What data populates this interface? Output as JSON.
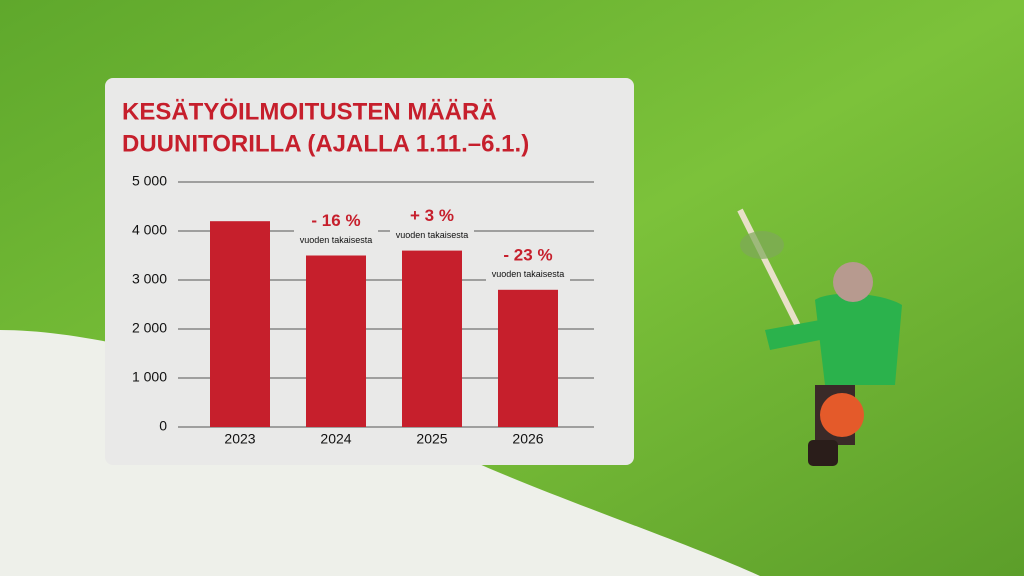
{
  "chart_data": {
    "type": "bar",
    "title": [
      "KESÄTYÖILMOITUSTEN MÄÄRÄ",
      "DUUNITORILLA (AJALLA 1.11.–6.1.)"
    ],
    "categories": [
      "2023",
      "2024",
      "2025",
      "2026"
    ],
    "values": [
      4200,
      3500,
      3600,
      2800
    ],
    "color": "#c61f2c",
    "ylim": [
      0,
      5000
    ],
    "yticks": [
      0,
      {
        "value": 1000,
        "label": "1 000"
      },
      {
        "value": 2000,
        "label": "2 000"
      },
      {
        "value": 3000,
        "label": "3 000"
      },
      {
        "value": 4000,
        "label": "4 000"
      },
      {
        "value": 5000,
        "label": "5 000"
      }
    ],
    "grid": true,
    "annotations": [
      null,
      {
        "text": "- 16 %",
        "note": "vuoden takaisesta"
      },
      {
        "text": "+ 3 %",
        "note": "vuoden takaisesta"
      },
      {
        "text": "- 23 %",
        "note": "vuoden takaisesta"
      }
    ]
  }
}
